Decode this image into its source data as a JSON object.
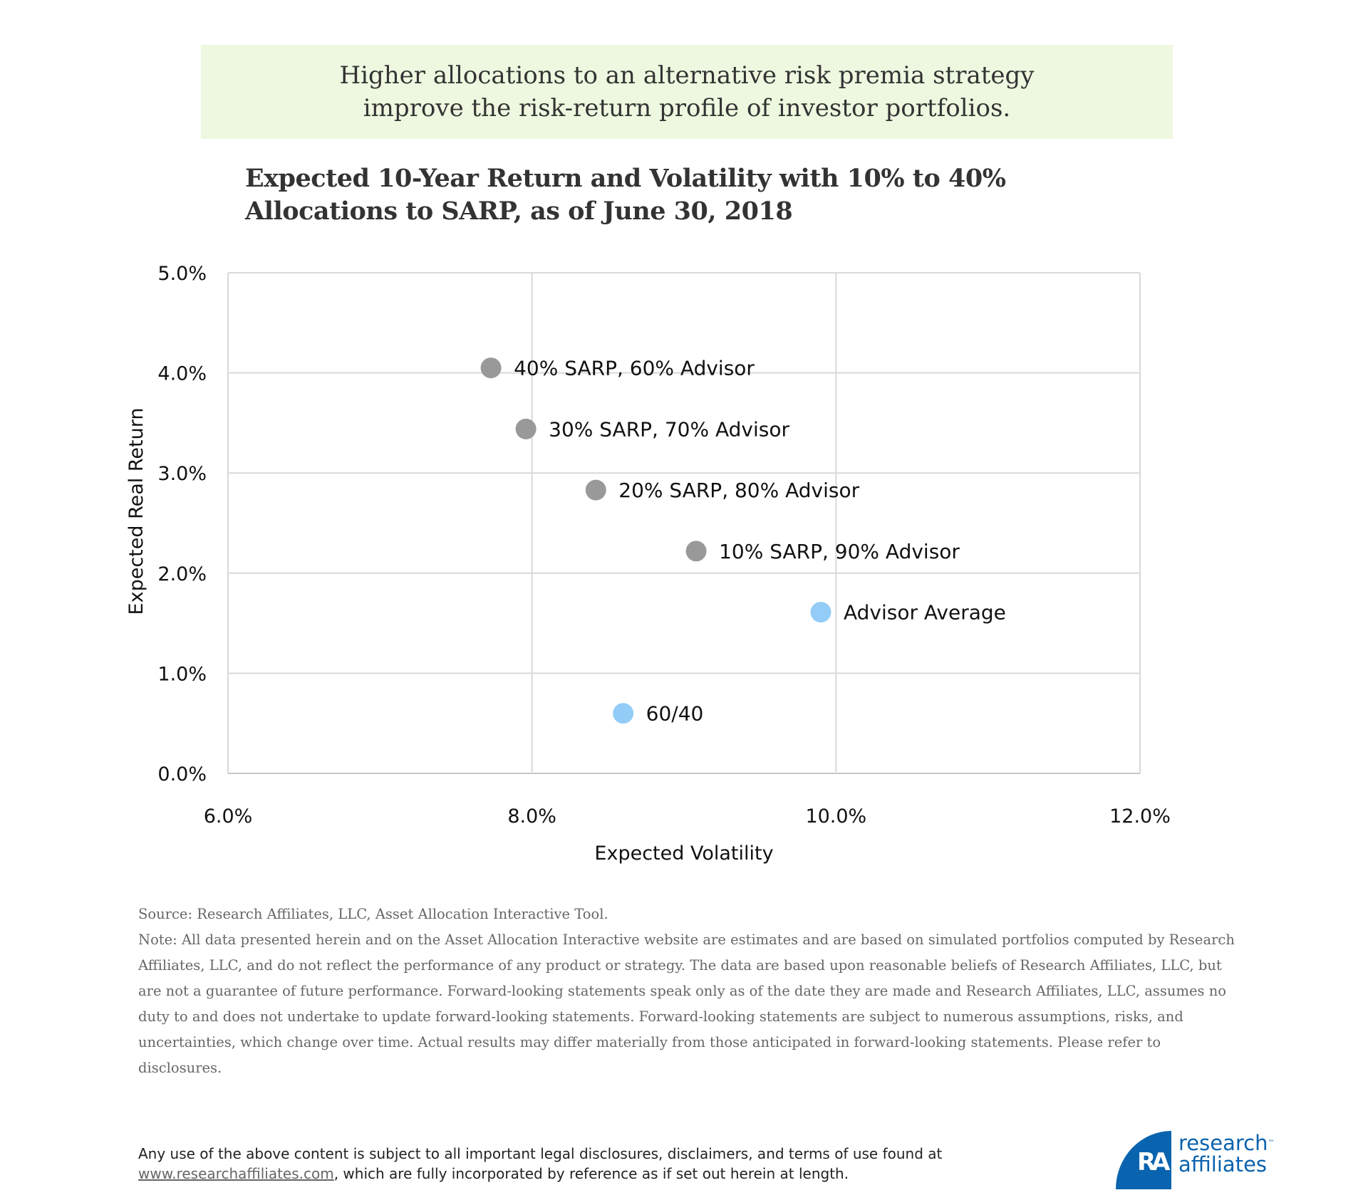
{
  "banner": {
    "text": "Higher allocations to an alternative risk premia strategy improve the risk-return profile of investor portfolios."
  },
  "chart_data": {
    "type": "scatter",
    "title": "Expected 10-Year Return and Volatility with 10% to 40% Allocations to SARP, as of June 30, 2018",
    "xlabel": "Expected Volatility",
    "ylabel": "Expected Real Return",
    "xlim": [
      6.0,
      12.0
    ],
    "ylim": [
      0.0,
      5.0
    ],
    "x_ticks": [
      6.0,
      8.0,
      10.0,
      12.0
    ],
    "x_tick_labels": [
      "6.0%",
      "8.0%",
      "10.0%",
      "12.0%"
    ],
    "y_ticks": [
      0.0,
      1.0,
      2.0,
      3.0,
      4.0,
      5.0
    ],
    "y_tick_labels": [
      "0.0%",
      "1.0%",
      "2.0%",
      "3.0%",
      "4.0%",
      "5.0%"
    ],
    "grid": true,
    "legend": "none",
    "colors": {
      "sarp": "#999999",
      "benchmark": "#93cdf7",
      "grid": "#d9d9d9"
    },
    "points": [
      {
        "label": "40% SARP, 60% Advisor",
        "x": 7.73,
        "y": 4.05,
        "group": "sarp"
      },
      {
        "label": "30% SARP, 70% Advisor",
        "x": 7.96,
        "y": 3.44,
        "group": "sarp"
      },
      {
        "label": "20% SARP, 80% Advisor",
        "x": 8.42,
        "y": 2.83,
        "group": "sarp"
      },
      {
        "label": "10% SARP, 90% Advisor",
        "x": 9.08,
        "y": 2.22,
        "group": "sarp"
      },
      {
        "label": "Advisor Average",
        "x": 9.9,
        "y": 1.61,
        "group": "benchmark"
      },
      {
        "label": "60/40",
        "x": 8.6,
        "y": 0.6,
        "group": "benchmark"
      }
    ]
  },
  "notes": {
    "source": "Source: Research Affiliates, LLC, Asset Allocation Interactive Tool.",
    "note": "Note: All data presented herein and on the Asset Allocation Interactive website are estimates and are based on simulated portfolios computed by Research Affiliates, LLC, and do not reflect the performance of any product or strategy. The data are based upon reasonable beliefs of Research Affiliates, LLC, but are not a guarantee of future performance. Forward-looking statements speak only as of the date they are made and Research Affiliates, LLC, assumes no duty to and does not undertake to update forward-looking statements. Forward-looking statements are subject to numerous assumptions, risks, and uncertainties, which change over time. Actual results may differ materially from those anticipated in forward-looking statements. Please refer to disclosures."
  },
  "footer": {
    "line1": "Any use of the above content is subject to all important legal disclosures, disclaimers, and terms of use found at",
    "link": "www.researchaffiliates.com",
    "line2": ", which are fully incorporated by reference as if set out herein at length."
  },
  "logo": {
    "mark": "RA",
    "line1": "research",
    "tm": "™",
    "line2": "affiliates"
  }
}
